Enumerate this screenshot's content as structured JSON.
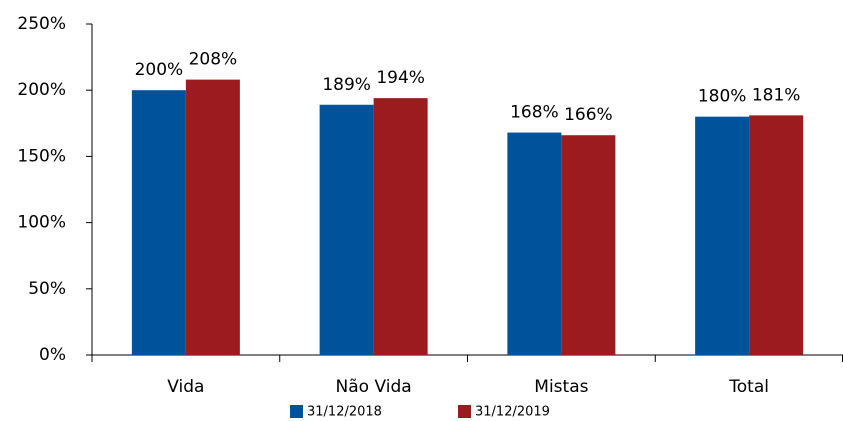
{
  "chart_data": {
    "type": "bar",
    "categories": [
      "Vida",
      "Não Vida",
      "Mistas",
      "Total"
    ],
    "series": [
      {
        "name": "31/12/2018",
        "color": "#00539b",
        "values": [
          200,
          189,
          168,
          180
        ],
        "value_labels": [
          "200%",
          "189%",
          "168%",
          "180%"
        ]
      },
      {
        "name": "31/12/2019",
        "color": "#9b1b1f",
        "values": [
          208,
          194,
          166,
          181
        ],
        "value_labels": [
          "208%",
          "194%",
          "166%",
          "181%"
        ]
      }
    ],
    "ylim": [
      0,
      250
    ],
    "yticks": [
      {
        "value": 0,
        "label": "0%"
      },
      {
        "value": 50,
        "label": "50%"
      },
      {
        "value": 100,
        "label": "100%"
      },
      {
        "value": 150,
        "label": "150%"
      },
      {
        "value": 200,
        "label": "200%"
      },
      {
        "value": 250,
        "label": "250%"
      }
    ],
    "grid": false,
    "legend": "bottom"
  }
}
